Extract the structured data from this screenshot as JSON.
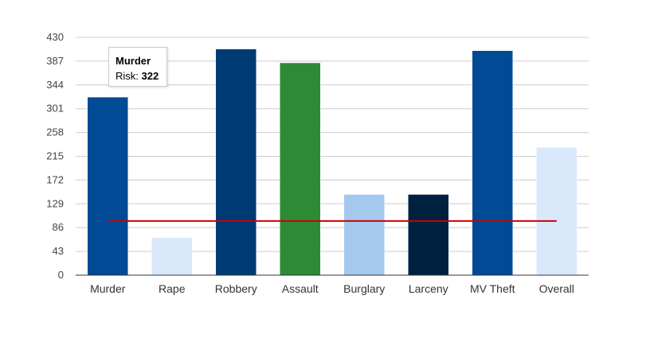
{
  "chart_data": {
    "type": "bar",
    "categories": [
      "Murder",
      "Rape",
      "Robbery",
      "Assault",
      "Burglary",
      "Larceny",
      "MV Theft",
      "Overall"
    ],
    "values": [
      322,
      68,
      409,
      384,
      146,
      146,
      406,
      231
    ],
    "bar_colors": [
      "#004a96",
      "#d9e9fb",
      "#003a75",
      "#2e8b35",
      "#a5c8ee",
      "#00203f",
      "#004a96",
      "#d9e9fb"
    ],
    "yticks": [
      0,
      43,
      86,
      129,
      172,
      215,
      258,
      301,
      344,
      387,
      430
    ],
    "ylim": [
      0,
      430
    ],
    "grid": true,
    "reference_line": {
      "value": 98,
      "color": "#cc0000"
    },
    "tooltip": {
      "title": "Murder",
      "label": "Risk:",
      "value": "322"
    }
  }
}
